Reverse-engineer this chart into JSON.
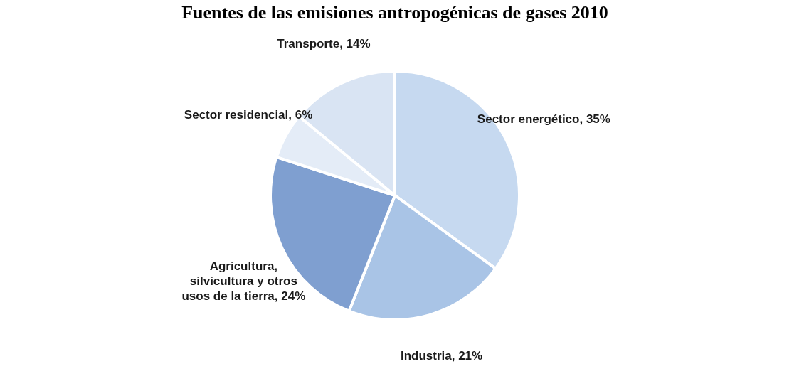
{
  "chart_data": {
    "type": "pie",
    "title": "Fuentes de las emisiones antropogénicas de gases 2010",
    "categories": [
      "Sector energético",
      "Industria",
      "Agricultura, silvicultura y otros usos de la tierra",
      "Sector residencial",
      "Transporte"
    ],
    "values": [
      35,
      21,
      24,
      6,
      14
    ],
    "colors": [
      "#c6d9f0",
      "#a9c4e6",
      "#7f9fd0",
      "#e4ecf7",
      "#d9e4f3"
    ],
    "value_labels": [
      "35%",
      "21%",
      "24%",
      "6%",
      "14%"
    ],
    "legend": false
  }
}
